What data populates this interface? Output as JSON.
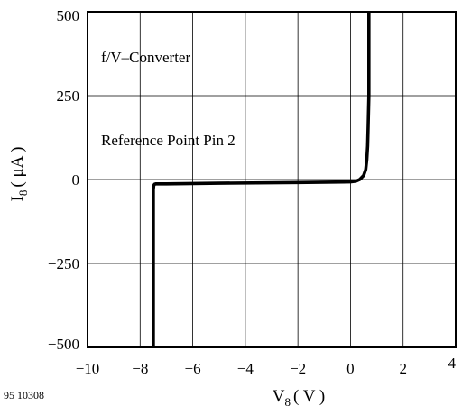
{
  "chart_data": {
    "type": "line",
    "title": "",
    "xlabel": {
      "base": "V",
      "sub": "8",
      "unit": "( V )"
    },
    "ylabel": {
      "base": "I",
      "sub": "8",
      "unit": "( μA )"
    },
    "xlim": [
      -10,
      4
    ],
    "ylim": [
      -500,
      500
    ],
    "x_ticks": [
      -10,
      -8,
      -6,
      -4,
      -2,
      0,
      2,
      4
    ],
    "x_tick_labels": [
      "−10",
      "−8",
      "−6",
      "−4",
      "−2",
      "0",
      "2",
      "4"
    ],
    "y_ticks": [
      -500,
      -250,
      0,
      250,
      500
    ],
    "y_tick_labels": [
      "−500",
      "−250",
      "0",
      "250",
      "500"
    ],
    "grid": true,
    "annotations": [
      "f/V–Converter",
      "Reference Point Pin 2"
    ],
    "series": [
      {
        "color": "#000000",
        "x": [
          -7.5,
          -7.5,
          -7.48,
          -7.45,
          -7.4,
          -7.3,
          -7.0,
          -5.0,
          -2.0,
          0.0,
          0.2,
          0.35,
          0.5,
          0.58,
          0.62,
          0.65,
          0.67,
          0.7,
          0.7
        ],
        "y": [
          -500,
          -30,
          -18,
          -14,
          -13,
          -13,
          -13,
          -11,
          -9,
          -7,
          -5,
          0,
          12,
          30,
          60,
          100,
          160,
          250,
          500
        ]
      }
    ]
  },
  "figure_id": "95 10308"
}
